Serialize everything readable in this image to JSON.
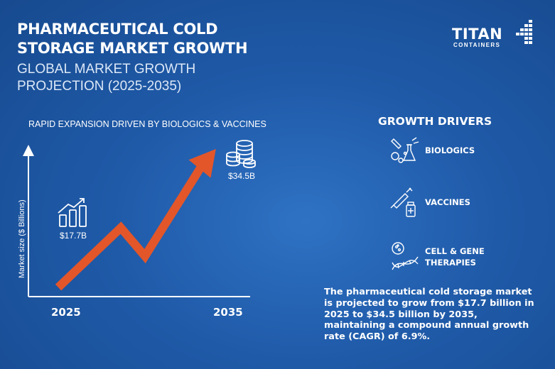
{
  "header": {
    "title": "PHARMACEUTICAL COLD STORAGE MARKET GROWTH",
    "subtitle": "GLOBAL MARKET GROWTH PROJECTION (2025-2035)"
  },
  "logo": {
    "word": "TITAN",
    "sub": "CONTAINERS"
  },
  "chart_data": {
    "type": "line",
    "subtitle": "RAPID EXPANSION DRIVEN BY BIOLOGICS & VACCINES",
    "ylabel": "Market size ($ Billions)",
    "x_ticks": [
      "2025",
      "2035"
    ],
    "points": [
      {
        "x": 2025,
        "y": 17.7,
        "label": "$17.7B"
      },
      {
        "x": 2035,
        "y": 34.5,
        "label": "$34.5B"
      }
    ],
    "arrow_color": "#e2562a",
    "grid": false
  },
  "drivers": {
    "title": "GROWTH DRIVERS",
    "items": [
      {
        "label": "BIOLOGICS",
        "icon": "lab-flask-icon"
      },
      {
        "label": "VACCINES",
        "icon": "syringe-vial-icon"
      },
      {
        "label_line1": "CELL & GENE",
        "label_line2": "THERAPIES",
        "icon": "dna-cell-icon"
      }
    ]
  },
  "summary": "The pharmaceutical cold storage market is projected to grow from $17.7 billion in 2025 to $34.5 billion by 2035, maintaining a compound annual growth rate (CAGR) of 6.9%."
}
